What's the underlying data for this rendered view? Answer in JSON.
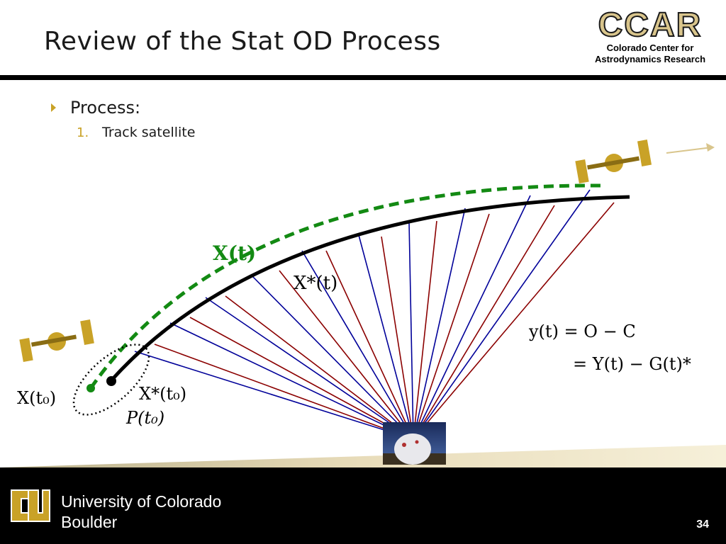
{
  "slide": {
    "title": "Review of the Stat OD Process",
    "logo": {
      "name": "CCAR",
      "subtitle_line1": "Colorado Center for",
      "subtitle_line2": "Astrodynamics Research"
    },
    "bullet": "Process:",
    "sub_items": [
      {
        "number": "1.",
        "text": "Track satellite"
      }
    ],
    "footer": {
      "university_line1": "University of Colorado",
      "university_line2": "Boulder",
      "page_number": "34"
    }
  },
  "diagram": {
    "labels": {
      "true_traj": "X(t)",
      "ref_traj": "X*(t)",
      "true_init": "X(t₀)",
      "ref_init": "X*(t₀)",
      "covariance": "P(t₀)",
      "eq1": "y(t) = O − C",
      "eq2": "= Y(t) − G(t)*"
    },
    "colors": {
      "true_traj": "#138a13",
      "ref_traj": "#000000",
      "ray_a": "#000099",
      "ray_b": "#8b0000",
      "satellite_gold": "#c9a227"
    }
  }
}
